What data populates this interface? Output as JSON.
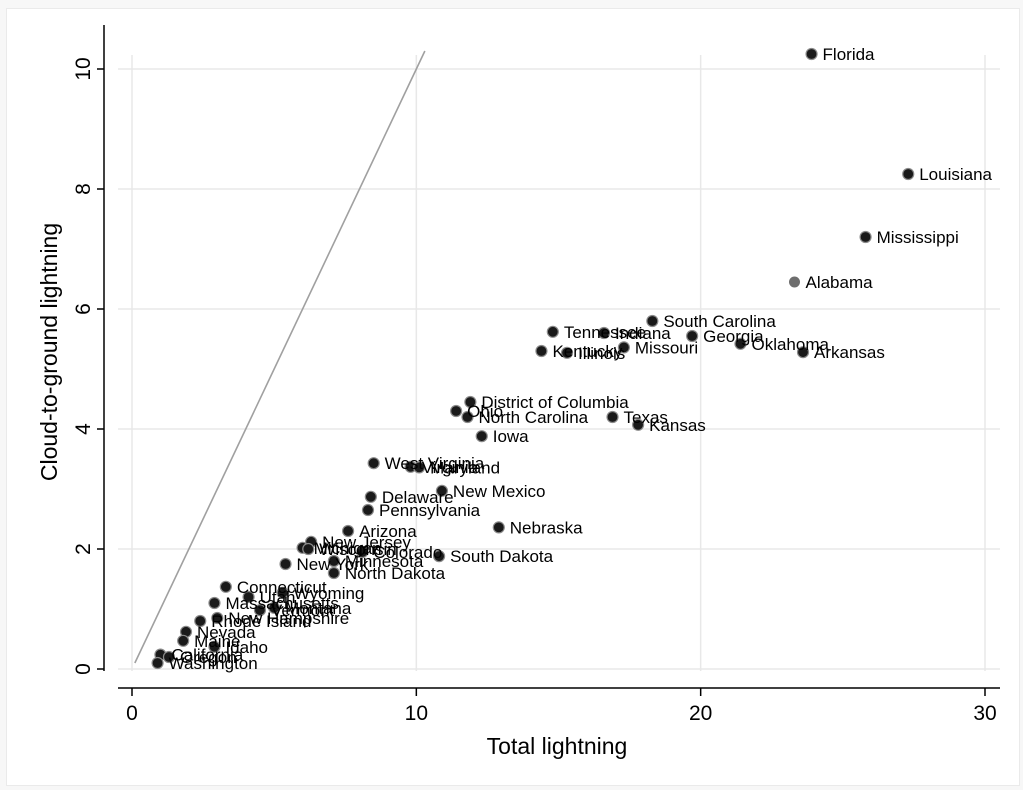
{
  "chart_data": {
    "type": "scatter",
    "xlabel": "Total lightning",
    "ylabel": "Cloud-to-ground lightning",
    "xlim": [
      0,
      30
    ],
    "ylim": [
      0,
      10
    ],
    "xticks": [
      "0",
      "10",
      "20",
      "30"
    ],
    "yticks": [
      "0",
      "2",
      "4",
      "6",
      "8",
      "10"
    ],
    "grid": true,
    "reference_line": {
      "from": [
        0.1,
        0.1
      ],
      "to": [
        10.3,
        10.3
      ],
      "color": "#a0a0a0"
    },
    "marker_color": "#1a1a1a",
    "highlight_color": "#6e6e6e",
    "points": [
      {
        "label": "Florida",
        "x": 23.9,
        "y": 10.25
      },
      {
        "label": "Louisiana",
        "x": 27.3,
        "y": 8.25
      },
      {
        "label": "Mississippi",
        "x": 25.8,
        "y": 7.2
      },
      {
        "label": "Alabama",
        "x": 23.3,
        "y": 6.45,
        "highlight": true
      },
      {
        "label": "South Carolina",
        "x": 18.3,
        "y": 5.8
      },
      {
        "label": "Tennessee",
        "x": 14.8,
        "y": 5.62
      },
      {
        "label": "Indiana",
        "x": 16.6,
        "y": 5.6
      },
      {
        "label": "Georgia",
        "x": 19.7,
        "y": 5.55
      },
      {
        "label": "Oklahoma",
        "x": 21.4,
        "y": 5.42
      },
      {
        "label": "Missouri",
        "x": 17.3,
        "y": 5.36
      },
      {
        "label": "Kentucky",
        "x": 14.4,
        "y": 5.3
      },
      {
        "label": "Illinois",
        "x": 15.3,
        "y": 5.27
      },
      {
        "label": "Arkansas",
        "x": 23.6,
        "y": 5.28
      },
      {
        "label": "District of Columbia",
        "x": 11.9,
        "y": 4.45
      },
      {
        "label": "Ohio",
        "x": 11.4,
        "y": 4.3
      },
      {
        "label": "North Carolina",
        "x": 11.8,
        "y": 4.2
      },
      {
        "label": "Texas",
        "x": 16.9,
        "y": 4.2
      },
      {
        "label": "Kansas",
        "x": 17.8,
        "y": 4.07
      },
      {
        "label": "Iowa",
        "x": 12.3,
        "y": 3.88
      },
      {
        "label": "West Virginia",
        "x": 8.5,
        "y": 3.43
      },
      {
        "label": "Virginia",
        "x": 9.8,
        "y": 3.37
      },
      {
        "label": "Maryland",
        "x": 10.1,
        "y": 3.36
      },
      {
        "label": "New Mexico",
        "x": 10.9,
        "y": 2.97
      },
      {
        "label": "Delaware",
        "x": 8.4,
        "y": 2.87
      },
      {
        "label": "Pennsylvania",
        "x": 8.3,
        "y": 2.65
      },
      {
        "label": "Nebraska",
        "x": 12.9,
        "y": 2.36
      },
      {
        "label": "Arizona",
        "x": 7.6,
        "y": 2.3
      },
      {
        "label": "New Jersey",
        "x": 6.3,
        "y": 2.12
      },
      {
        "label": "Michigan",
        "x": 6.0,
        "y": 2.02
      },
      {
        "label": "Wisconsin",
        "x": 6.2,
        "y": 2.0
      },
      {
        "label": "Colorado",
        "x": 8.1,
        "y": 1.95
      },
      {
        "label": "South Dakota",
        "x": 10.8,
        "y": 1.88
      },
      {
        "label": "Minnesota",
        "x": 7.1,
        "y": 1.8
      },
      {
        "label": "New York",
        "x": 5.4,
        "y": 1.75
      },
      {
        "label": "North Dakota",
        "x": 7.1,
        "y": 1.6
      },
      {
        "label": "Connecticut",
        "x": 3.3,
        "y": 1.37
      },
      {
        "label": "Wyoming",
        "x": 5.3,
        "y": 1.27
      },
      {
        "label": "Utah",
        "x": 4.1,
        "y": 1.2
      },
      {
        "label": "Massachusetts",
        "x": 2.9,
        "y": 1.1
      },
      {
        "label": "Montana",
        "x": 5.0,
        "y": 1.02
      },
      {
        "label": "Vermont",
        "x": 4.5,
        "y": 0.98
      },
      {
        "label": "New Hampshire",
        "x": 3.0,
        "y": 0.85
      },
      {
        "label": "Rhode Island",
        "x": 2.4,
        "y": 0.8
      },
      {
        "label": "Nevada",
        "x": 1.9,
        "y": 0.62
      },
      {
        "label": "Maine",
        "x": 1.8,
        "y": 0.47
      },
      {
        "label": "Idaho",
        "x": 2.9,
        "y": 0.37
      },
      {
        "label": "California",
        "x": 1.0,
        "y": 0.24
      },
      {
        "label": "Oregon",
        "x": 1.3,
        "y": 0.2
      },
      {
        "label": "Washington",
        "x": 0.9,
        "y": 0.1
      }
    ]
  }
}
